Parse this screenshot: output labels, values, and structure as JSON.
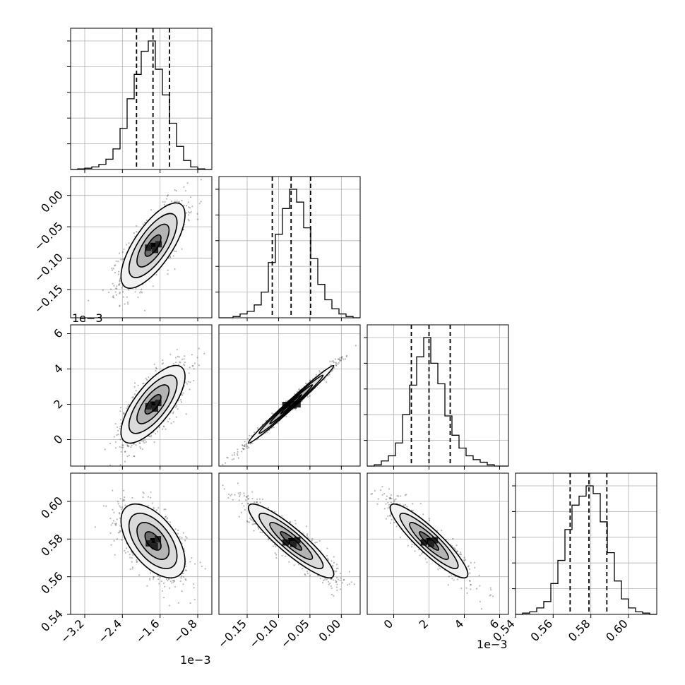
{
  "chart_data": {
    "type": "corner",
    "parameters": [
      {
        "index": 0,
        "label": "",
        "scale_label": "1e−3",
        "range": [
          -3.5,
          -0.5
        ],
        "ticks": [
          -3.2,
          -2.4,
          -1.6,
          -0.8
        ],
        "tick_labels": [
          "−3.2",
          "−2.4",
          "−1.6",
          "−0.8"
        ],
        "median": -1.75,
        "q16": -2.1,
        "q84": -1.4
      },
      {
        "index": 1,
        "label": "",
        "scale_label": "",
        "range": [
          -0.195,
          0.03
        ],
        "ticks": [
          -0.15,
          -0.1,
          -0.05,
          0.0
        ],
        "tick_labels": [
          "−0.15",
          "−0.10",
          "−0.05",
          "0.00"
        ],
        "median": -0.08,
        "q16": -0.11,
        "q84": -0.049
      },
      {
        "index": 2,
        "label": "",
        "scale_label": "1e−3",
        "range": [
          -1.5,
          6.5
        ],
        "ticks": [
          0,
          2,
          4,
          6
        ],
        "tick_labels": [
          "0",
          "2",
          "4",
          "6"
        ],
        "median": 2.0,
        "q16": 1.0,
        "q84": 3.2
      },
      {
        "index": 3,
        "label": "",
        "scale_label": "",
        "range": [
          0.54,
          0.615
        ],
        "ticks": [
          0.54,
          0.56,
          0.58,
          0.6
        ],
        "tick_labels": [
          "0.54",
          "0.56",
          "0.58",
          "0.60"
        ],
        "median": 0.579,
        "q16": 0.569,
        "q84": 0.5885
      }
    ],
    "histograms": [
      {
        "param": 0,
        "bin_edges": [
          -3.5,
          -3.35,
          -3.2,
          -3.05,
          -2.9,
          -2.75,
          -2.6,
          -2.45,
          -2.3,
          -2.15,
          -2.0,
          -1.85,
          -1.7,
          -1.55,
          -1.4,
          -1.25,
          -1.1,
          -0.95,
          -0.8,
          -0.65,
          -0.5
        ],
        "counts": [
          0,
          0.005,
          0.01,
          0.02,
          0.04,
          0.08,
          0.16,
          0.32,
          0.55,
          0.74,
          0.92,
          1.0,
          0.78,
          0.58,
          0.36,
          0.18,
          0.07,
          0.02,
          0.005,
          0,
          0
        ]
      },
      {
        "param": 1,
        "bin_edges": [
          -0.195,
          -0.18375,
          -0.1725,
          -0.16125,
          -0.15,
          -0.13875,
          -0.1275,
          -0.11625,
          -0.105,
          -0.09375,
          -0.0825,
          -0.07125,
          -0.06,
          -0.04875,
          -0.0375,
          -0.02625,
          -0.015,
          -0.00375,
          0.0075,
          0.01875,
          0.03
        ],
        "counts": [
          0,
          0,
          0.01,
          0.03,
          0.05,
          0.1,
          0.2,
          0.43,
          0.65,
          0.85,
          1.0,
          0.9,
          0.7,
          0.46,
          0.26,
          0.14,
          0.07,
          0.03,
          0.01,
          0,
          0
        ]
      },
      {
        "param": 2,
        "bin_edges": [
          -1.5,
          -1.1,
          -0.7,
          -0.3,
          0.1,
          0.5,
          0.9,
          1.3,
          1.7,
          2.1,
          2.5,
          2.9,
          3.3,
          3.7,
          4.1,
          4.5,
          4.9,
          5.3,
          5.7,
          6.1,
          6.5
        ],
        "counts": [
          0,
          0.01,
          0.04,
          0.08,
          0.18,
          0.4,
          0.63,
          0.85,
          1.0,
          0.8,
          0.64,
          0.39,
          0.24,
          0.14,
          0.08,
          0.05,
          0.03,
          0.01,
          0,
          0,
          0
        ]
      },
      {
        "param": 3,
        "bin_edges": [
          0.54,
          0.54375,
          0.5475,
          0.55125,
          0.555,
          0.55875,
          0.5625,
          0.56625,
          0.57,
          0.57375,
          0.5775,
          0.58125,
          0.585,
          0.58875,
          0.5925,
          0.59625,
          0.6,
          0.60375,
          0.6075,
          0.61125,
          0.615
        ],
        "counts": [
          0,
          0.01,
          0.02,
          0.05,
          0.1,
          0.24,
          0.42,
          0.66,
          0.85,
          0.92,
          1.0,
          0.94,
          0.72,
          0.48,
          0.26,
          0.12,
          0.05,
          0.02,
          0.01,
          0,
          0
        ]
      }
    ],
    "pairs": [
      {
        "row": 1,
        "col": 0,
        "center": [
          -1.75,
          -0.08
        ],
        "sigma": [
          0.34,
          0.034
        ],
        "rho": 0.72
      },
      {
        "row": 2,
        "col": 0,
        "center": [
          -1.75,
          2.0
        ],
        "sigma": [
          0.34,
          1.1
        ],
        "rho": 0.72
      },
      {
        "row": 2,
        "col": 1,
        "center": [
          -0.08,
          2.0
        ],
        "sigma": [
          0.034,
          1.1
        ],
        "rho": 0.99
      },
      {
        "row": 3,
        "col": 0,
        "center": [
          -1.75,
          0.579
        ],
        "sigma": [
          0.34,
          0.0098
        ],
        "rho": -0.55
      },
      {
        "row": 3,
        "col": 1,
        "center": [
          -0.08,
          0.579
        ],
        "sigma": [
          0.034,
          0.0098
        ],
        "rho": -0.9
      },
      {
        "row": 3,
        "col": 2,
        "center": [
          2.0,
          0.579
        ],
        "sigma": [
          1.1,
          0.0098
        ],
        "rho": -0.9
      }
    ],
    "contour_levels_sigma": [
      0.5,
      1.0,
      1.5,
      2.0
    ],
    "grid": true,
    "colors": {
      "line": "#000000",
      "grid": "#b0b0b0",
      "points": "#000000"
    }
  }
}
